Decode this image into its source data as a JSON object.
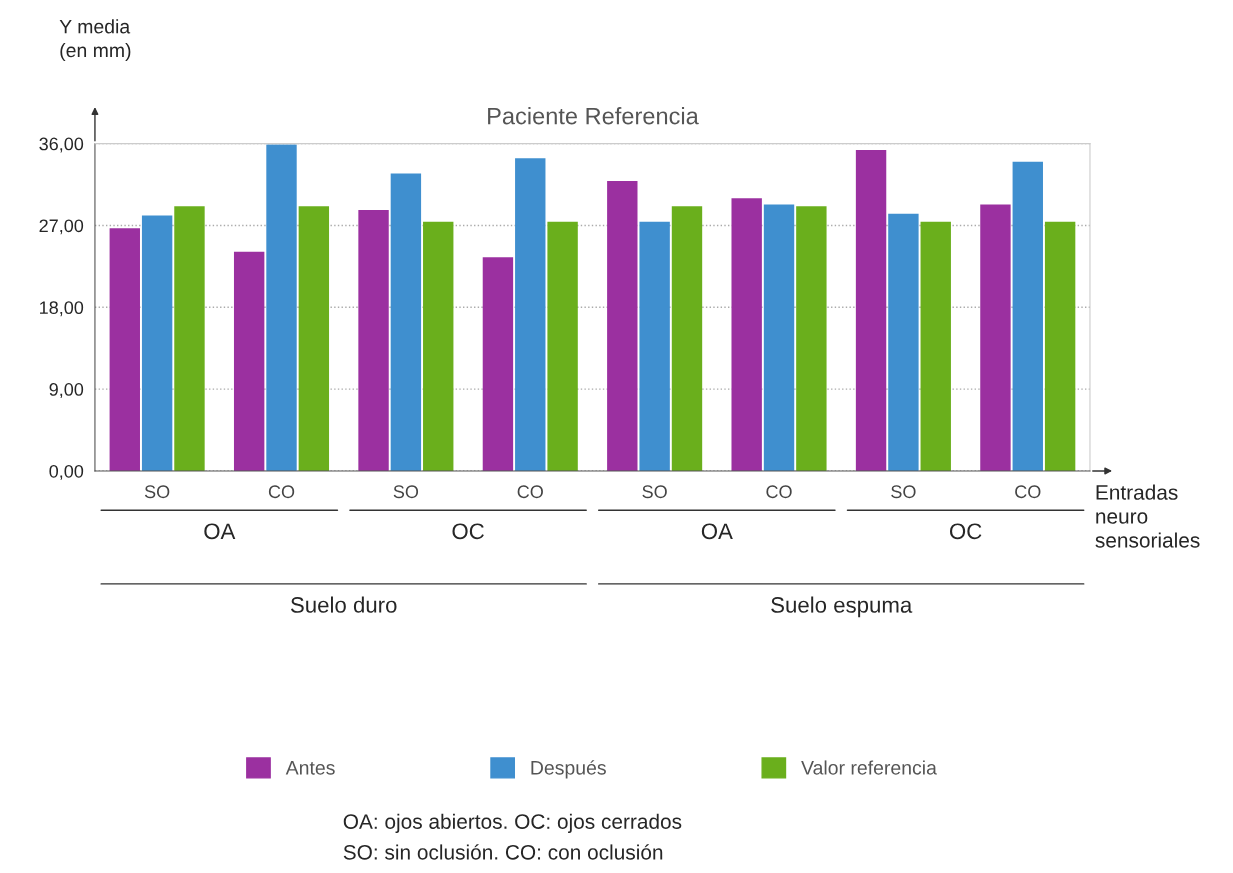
{
  "chart_data": {
    "type": "bar",
    "title": "Paciente Referencia",
    "xlabel": "Entradas\nneuro\nsensoriales",
    "ylabel": "Y media\n(en mm)",
    "categories": [
      "SO",
      "CO",
      "SO",
      "CO",
      "SO",
      "CO",
      "SO",
      "CO"
    ],
    "series": [
      {
        "name": "Antes",
        "color": "#9b30a0",
        "values": [
          26.7,
          24.1,
          28.7,
          23.5,
          31.9,
          30.0,
          35.3,
          29.3
        ]
      },
      {
        "name": "Después",
        "color": "#3f8fcf",
        "values": [
          28.1,
          35.9,
          32.7,
          34.4,
          27.4,
          29.3,
          28.3,
          34.0
        ]
      },
      {
        "name": "Valor referencia",
        "color": "#6aaf1c",
        "values": [
          29.1,
          29.1,
          27.4,
          27.4,
          29.1,
          29.1,
          27.4,
          27.4
        ]
      }
    ],
    "ylim": [
      0,
      36
    ],
    "yticks": [
      {
        "value": 0,
        "label": "0,00"
      },
      {
        "value": 9,
        "label": "9,00"
      },
      {
        "value": 18,
        "label": "18,00"
      },
      {
        "value": 27,
        "label": "27,00"
      },
      {
        "value": 36,
        "label": "36,00"
      }
    ],
    "grid": "y",
    "legend": "bottom",
    "annotations": [
      "OA",
      "OC",
      "OA",
      "OC",
      "Suelo duro",
      "Suelo espuma",
      "OA: ojos abiertos. OC: ojos cerrados\nSO: sin oclusión. CO: con oclusión"
    ]
  }
}
